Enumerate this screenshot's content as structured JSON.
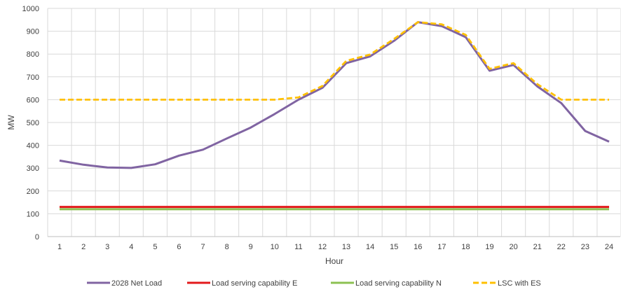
{
  "chart_data": {
    "type": "line",
    "title": "",
    "xlabel": "Hour",
    "ylabel": "MW",
    "ylim": [
      0,
      1000
    ],
    "yticks": [
      0,
      100,
      200,
      300,
      400,
      500,
      600,
      700,
      800,
      900,
      1000
    ],
    "x": [
      1,
      2,
      3,
      4,
      5,
      6,
      7,
      8,
      9,
      10,
      11,
      12,
      13,
      14,
      15,
      16,
      17,
      18,
      19,
      20,
      21,
      22,
      23,
      24
    ],
    "grid": true,
    "legend_position": "bottom",
    "series": [
      {
        "name": "2028 Net Load",
        "color": "#8064a2",
        "style": "solid",
        "values": [
          333,
          315,
          303,
          301,
          317,
          355,
          381,
          430,
          478,
          537,
          600,
          652,
          760,
          790,
          858,
          940,
          922,
          874,
          727,
          752,
          658,
          585,
          463,
          416
        ]
      },
      {
        "name": "Load serving capability E",
        "color": "#e31a1c",
        "style": "solid",
        "values": [
          130,
          130,
          130,
          130,
          130,
          130,
          130,
          130,
          130,
          130,
          130,
          130,
          130,
          130,
          130,
          130,
          130,
          130,
          130,
          130,
          130,
          130,
          130,
          130
        ]
      },
      {
        "name": "Load serving capability N",
        "color": "#8cc152",
        "style": "solid",
        "values": [
          120,
          120,
          120,
          120,
          120,
          120,
          120,
          120,
          120,
          120,
          120,
          120,
          120,
          120,
          120,
          120,
          120,
          120,
          120,
          120,
          120,
          120,
          120,
          120
        ]
      },
      {
        "name": "LSC with ES",
        "color": "#ffc000",
        "style": "dashed",
        "values": [
          600,
          600,
          600,
          600,
          600,
          600,
          600,
          600,
          600,
          600,
          610,
          660,
          770,
          798,
          866,
          940,
          930,
          884,
          735,
          760,
          668,
          600,
          600,
          600
        ]
      }
    ]
  }
}
